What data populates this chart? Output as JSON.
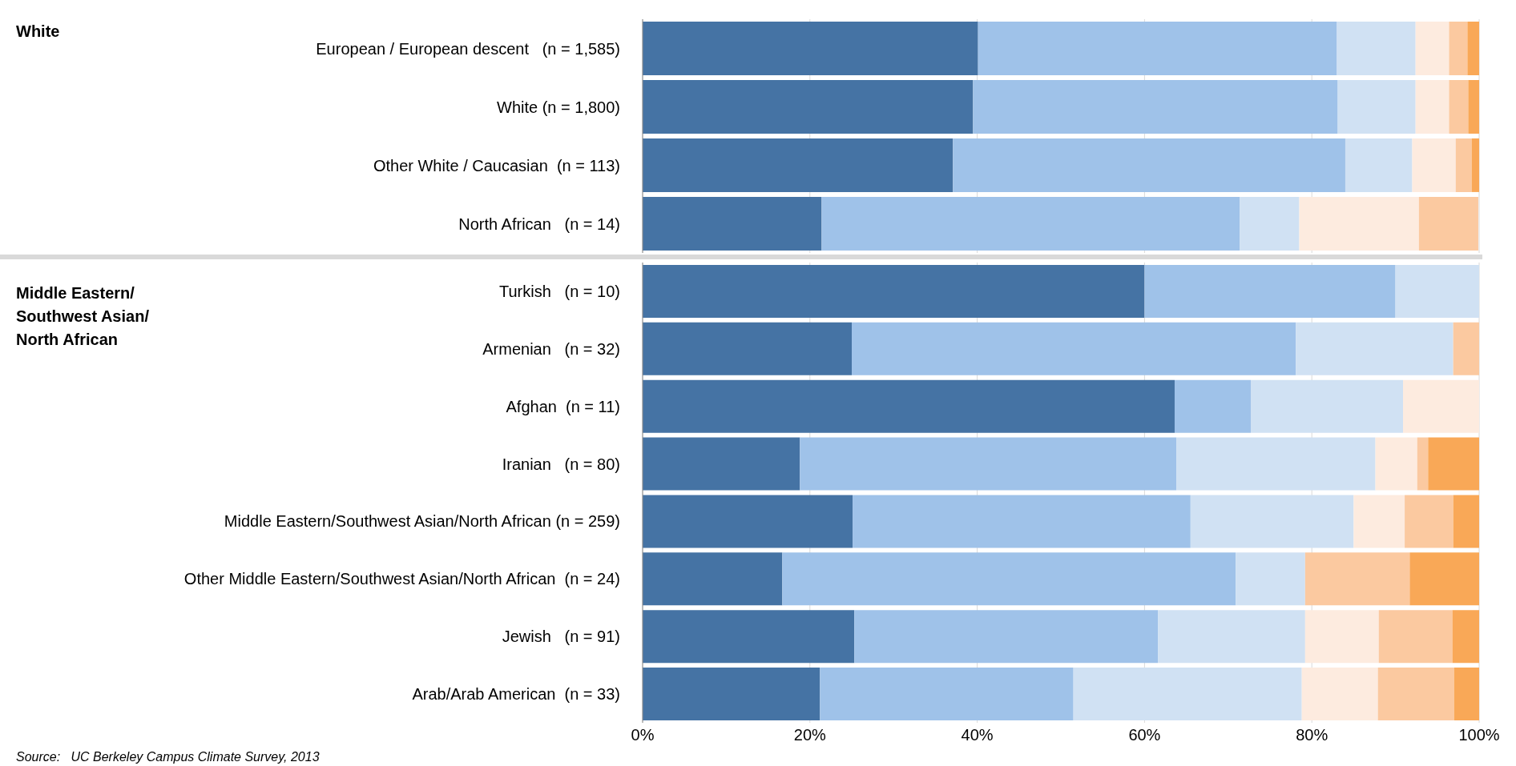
{
  "chart_data": [
    {
      "type": "bar",
      "orientation": "horizontal",
      "stacked": true,
      "annotations": [
        "White"
      ],
      "categories": [
        "European / European descent   (n = 1,585)",
        "White (n = 1,800)",
        "Other White / Caucasian  (n = 113)",
        "North African   (n = 14)"
      ],
      "series": [
        {
          "color": "#4573a4",
          "values": [
            40.1,
            39.5,
            37.1,
            21.4
          ]
        },
        {
          "color": "#9fc2e9",
          "values": [
            42.9,
            43.6,
            46.9,
            50
          ]
        },
        {
          "color": "#d0e1f3",
          "values": [
            9.4,
            9.3,
            8,
            7.1
          ]
        },
        {
          "color": "#fdebdf",
          "values": [
            4,
            4,
            5.2,
            14.3
          ]
        },
        {
          "color": "#fbc9a0",
          "values": [
            2.2,
            2.3,
            1.9,
            7.1
          ]
        },
        {
          "color": "#f9a857",
          "values": [
            1.4,
            1.3,
            0.9,
            0
          ]
        }
      ],
      "xlim": [
        0,
        100
      ],
      "xticks": [
        0,
        20,
        40,
        60,
        80,
        100
      ],
      "tick_labels": "y",
      "grid": "x",
      "legend": false
    },
    {
      "type": "bar",
      "orientation": "horizontal",
      "stacked": true,
      "title": "Middle Eastern/ Southwest Asian/ North African",
      "categories": [
        "Turkish   (n = 10)",
        "Armenian   (n = 32)",
        "Afghan  (n = 11)",
        "Iranian   (n = 80)",
        "Middle Eastern/Southwest Asian/North African (n = 259)",
        "Other Middle Eastern/Southwest Asian/North African  (n = 24)",
        "Jewish   (n = 91)",
        "Arab/Arab American  (n = 33)"
      ],
      "series": [
        {
          "color": "#4573a4",
          "values": [
            60,
            25,
            63.6,
            18.8,
            25.1,
            16.7,
            25.3,
            21.2
          ]
        },
        {
          "color": "#9fc2e9",
          "values": [
            30,
            53.1,
            9.1,
            45,
            40.4,
            54.2,
            36.3,
            30.3
          ]
        },
        {
          "color": "#d0e1f3",
          "values": [
            10,
            18.8,
            18.2,
            23.8,
            19.5,
            8.3,
            17.6,
            27.3
          ]
        },
        {
          "color": "#fdebdf",
          "values": [
            0,
            0,
            9.1,
            5,
            6.1,
            0,
            8.8,
            9.1
          ]
        },
        {
          "color": "#fbc9a0",
          "values": [
            0,
            3.1,
            0,
            1.3,
            5.8,
            12.5,
            8.8,
            9.1
          ]
        },
        {
          "color": "#f9a857",
          "values": [
            0,
            0,
            0,
            6.3,
            3.1,
            8.3,
            3.3,
            3
          ]
        }
      ],
      "xlim": [
        0,
        100
      ],
      "xticks": [
        {
          "value": 0,
          "label": "0%"
        },
        {
          "value": 20,
          "label": "20%"
        },
        {
          "value": 40,
          "label": "40%"
        },
        {
          "value": 60,
          "label": "60%"
        },
        {
          "value": 80,
          "label": "80%"
        },
        {
          "value": 100,
          "label": "100%"
        }
      ],
      "grid": "x",
      "legend": false,
      "annotations": [
        "Source:   UC Berkeley Campus Climate Survey, 2013"
      ]
    }
  ]
}
